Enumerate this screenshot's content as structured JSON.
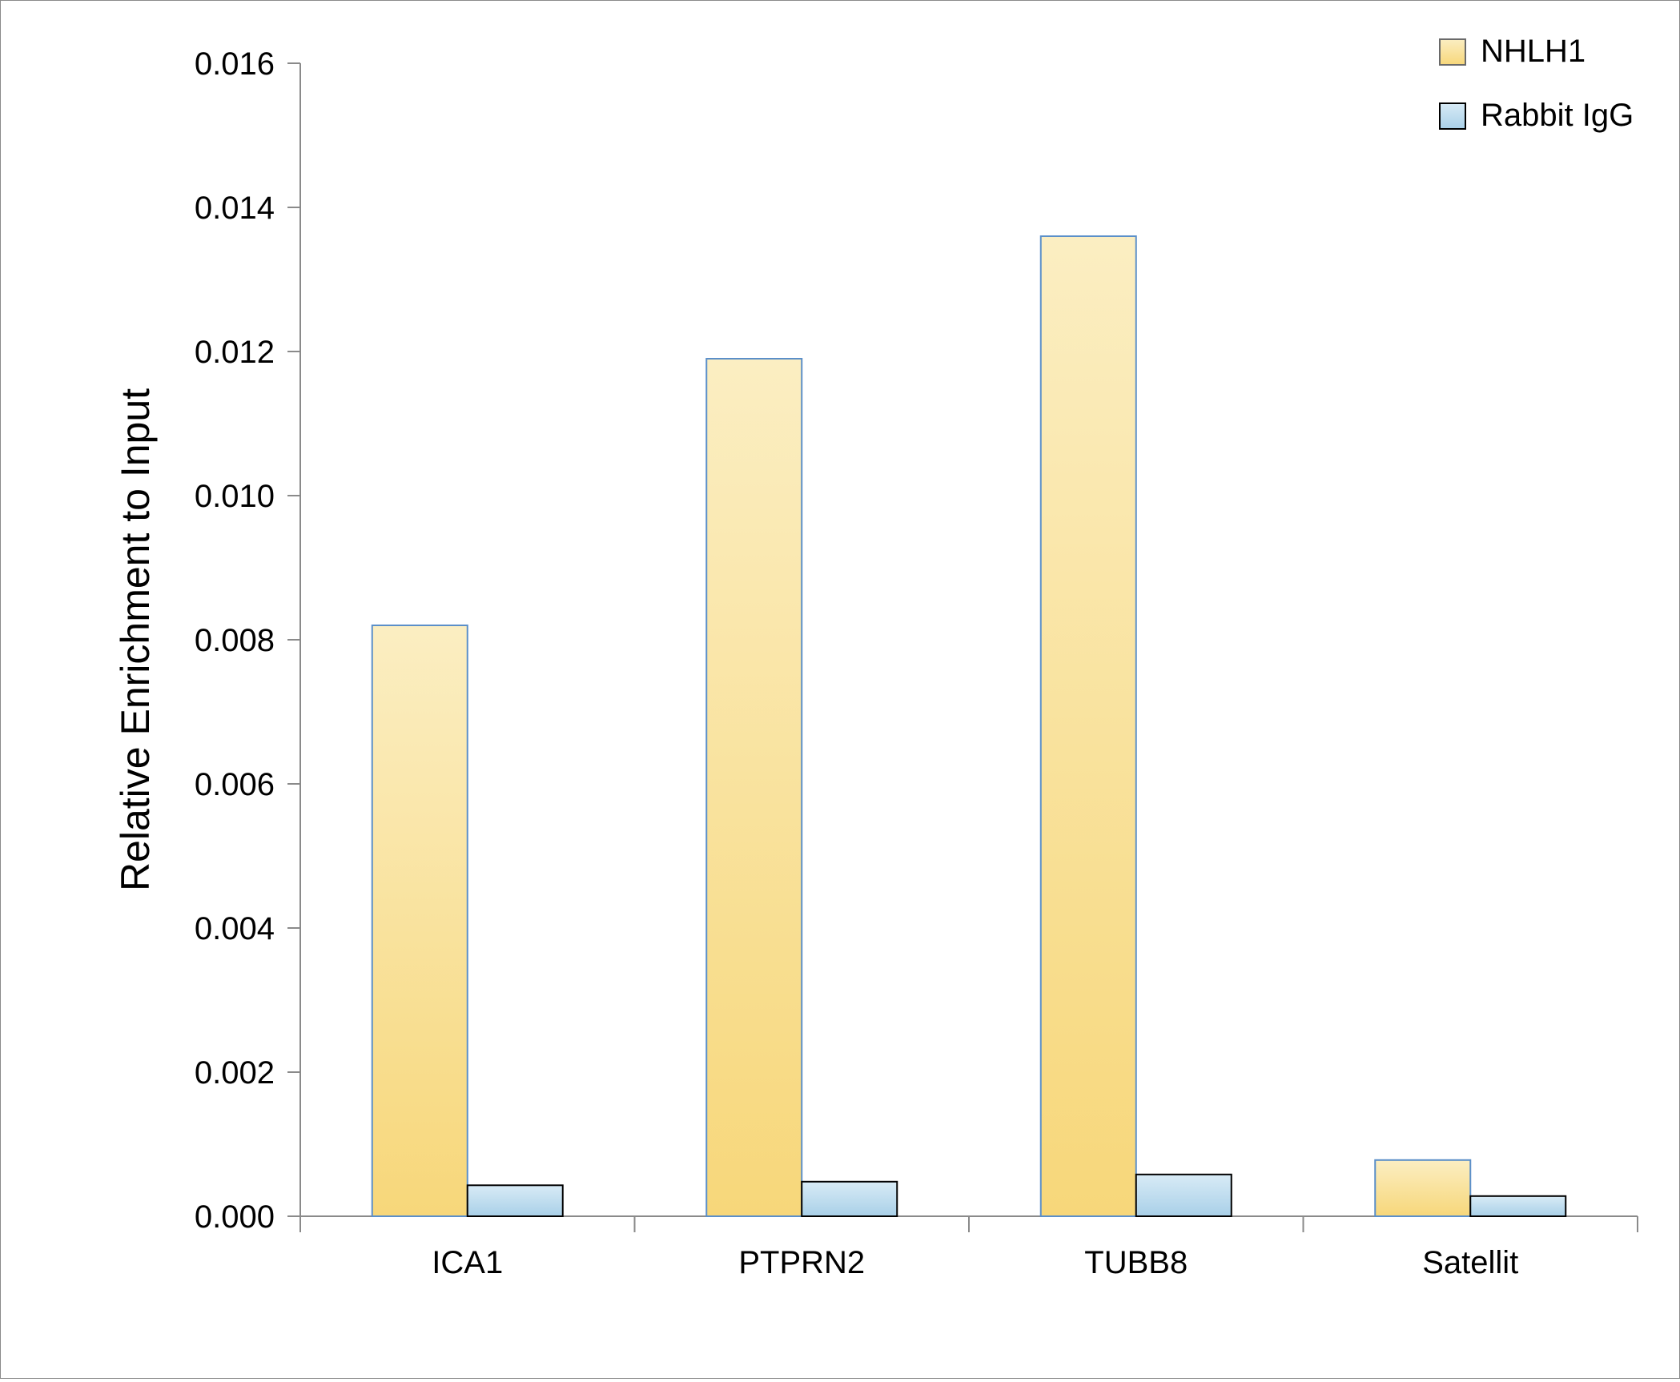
{
  "chart_data": {
    "type": "bar",
    "title": "",
    "xlabel": "",
    "ylabel": "Relative Enrichment to Input",
    "categories": [
      "ICA1",
      "PTPRN2",
      "TUBB8",
      "Satellit"
    ],
    "series": [
      {
        "name": "NHLH1",
        "values": [
          0.0082,
          0.0119,
          0.0136,
          0.00078
        ],
        "color": "#f7d77a",
        "color_light": "#fbeec2",
        "edge": "#5b8fc9"
      },
      {
        "name": "Rabbit IgG",
        "values": [
          0.00043,
          0.00048,
          0.00058,
          0.00028
        ],
        "color": "#a9d0e8",
        "color_light": "#d8ebf6",
        "edge": "#000000"
      }
    ],
    "ylim": [
      0,
      0.016
    ],
    "yticks": [
      "0.000",
      "0.002",
      "0.004",
      "0.006",
      "0.008",
      "0.010",
      "0.012",
      "0.014",
      "0.016"
    ],
    "grid": false,
    "legend_position": "top-right"
  }
}
